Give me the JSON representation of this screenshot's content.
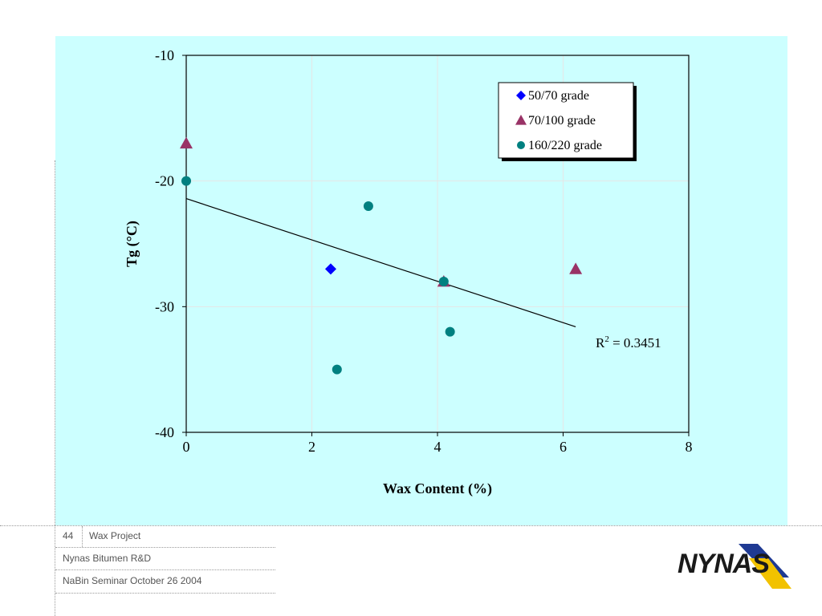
{
  "chart_data": {
    "type": "scatter",
    "xlabel": "Wax Content (%)",
    "ylabel": "Tg (°C)",
    "xlim": [
      0,
      8
    ],
    "ylim": [
      -40,
      -10
    ],
    "x_ticks": [
      0,
      2,
      4,
      6,
      8
    ],
    "y_ticks": [
      -10,
      -20,
      -30,
      -40
    ],
    "grid": true,
    "legend_position": "top-right",
    "series": [
      {
        "name": "50/70 grade",
        "marker": "diamond",
        "color": "#0000ff",
        "points": [
          [
            2.3,
            -27
          ]
        ]
      },
      {
        "name": "70/100 grade",
        "marker": "triangle",
        "color": "#993366",
        "points": [
          [
            0,
            -17
          ],
          [
            4.1,
            -28
          ],
          [
            6.2,
            -27
          ]
        ]
      },
      {
        "name": "160/220 grade",
        "marker": "circle",
        "color": "#008080",
        "points": [
          [
            0,
            -20
          ],
          [
            2.4,
            -35
          ],
          [
            2.9,
            -22
          ],
          [
            4.1,
            -28
          ],
          [
            4.2,
            -32
          ]
        ]
      }
    ],
    "trendline": {
      "from": [
        0,
        -21.4
      ],
      "to": [
        6.2,
        -31.6
      ],
      "color": "#000000"
    },
    "annotation": {
      "text": "R",
      "superscript": "2",
      "suffix": " = 0.3451"
    }
  },
  "footer": {
    "slide_number": "44",
    "project": "Wax Project",
    "org": "Nynas Bitumen R&D",
    "event": "NaBin Seminar October 26 2004"
  },
  "logo": {
    "text": "NYNAS",
    "colors": [
      "#1f3a93",
      "#f2c200",
      "#1a1a1a"
    ]
  }
}
